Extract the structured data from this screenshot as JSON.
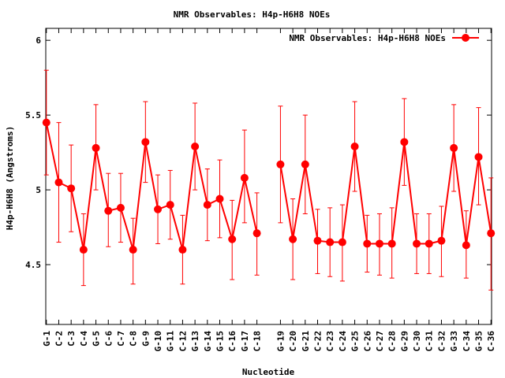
{
  "chart_data": {
    "type": "line",
    "title": "NMR Observables: H4p-H6H8 NOEs",
    "xlabel": "Nucleotide",
    "ylabel": "H4p-H6H8 (Angstroms)",
    "ylim": [
      4.1,
      6.08
    ],
    "yticks": [
      "4.5",
      "5",
      "5.5",
      "6"
    ],
    "legend": {
      "position": "top-right"
    },
    "color": "#ff0000",
    "categories": [
      "G-1",
      "C-2",
      "C-3",
      "C-4",
      "G-5",
      "C-6",
      "C-7",
      "C-8",
      "G-9",
      "G-10",
      "G-11",
      "C-12",
      "G-13",
      "G-14",
      "G-15",
      "C-16",
      "G-17",
      "C-18",
      "G-19",
      "C-20",
      "G-21",
      "C-22",
      "C-23",
      "C-24",
      "G-25",
      "C-26",
      "C-27",
      "C-28",
      "G-29",
      "C-30",
      "C-31",
      "C-32",
      "G-33",
      "C-34",
      "G-35",
      "C-36"
    ],
    "x": [
      1,
      2,
      3,
      4,
      5,
      6,
      7,
      8,
      9,
      10,
      11,
      12,
      13,
      14,
      15,
      16,
      17,
      18,
      19.9,
      20.9,
      21.9,
      22.9,
      23.9,
      24.9,
      25.9,
      26.9,
      27.9,
      28.9,
      29.9,
      30.9,
      31.9,
      32.9,
      33.9,
      34.9,
      35.9,
      36.9
    ],
    "segments": [
      [
        0,
        17
      ],
      [
        18,
        35
      ]
    ],
    "series": [
      {
        "name": "NMR Observables: H4p-H6H8 NOEs",
        "values": [
          5.45,
          5.05,
          5.01,
          4.6,
          5.28,
          4.86,
          4.88,
          4.6,
          5.32,
          4.87,
          4.9,
          4.6,
          5.29,
          4.9,
          4.94,
          4.67,
          5.08,
          4.71,
          5.17,
          4.67,
          5.17,
          4.66,
          4.65,
          4.65,
          5.29,
          4.64,
          4.64,
          4.64,
          5.32,
          4.64,
          4.64,
          4.66,
          5.28,
          4.63,
          5.22,
          4.71
        ],
        "err_low": [
          5.1,
          4.65,
          4.72,
          4.36,
          5.0,
          4.62,
          4.65,
          4.37,
          5.05,
          4.64,
          4.67,
          4.37,
          5.0,
          4.66,
          4.68,
          4.4,
          4.78,
          4.43,
          4.78,
          4.4,
          4.84,
          4.44,
          4.42,
          4.39,
          4.99,
          4.45,
          4.43,
          4.41,
          5.03,
          4.44,
          4.44,
          4.42,
          4.99,
          4.41,
          4.9,
          4.33
        ],
        "err_high": [
          5.8,
          5.45,
          5.3,
          4.84,
          5.57,
          5.11,
          5.11,
          4.81,
          5.59,
          5.1,
          5.13,
          4.83,
          5.58,
          5.14,
          5.2,
          4.93,
          5.4,
          4.98,
          5.56,
          4.94,
          5.5,
          4.87,
          4.88,
          4.9,
          5.59,
          4.83,
          4.84,
          4.88,
          5.61,
          4.84,
          4.84,
          4.89,
          5.57,
          4.86,
          5.55,
          5.08
        ]
      }
    ]
  }
}
